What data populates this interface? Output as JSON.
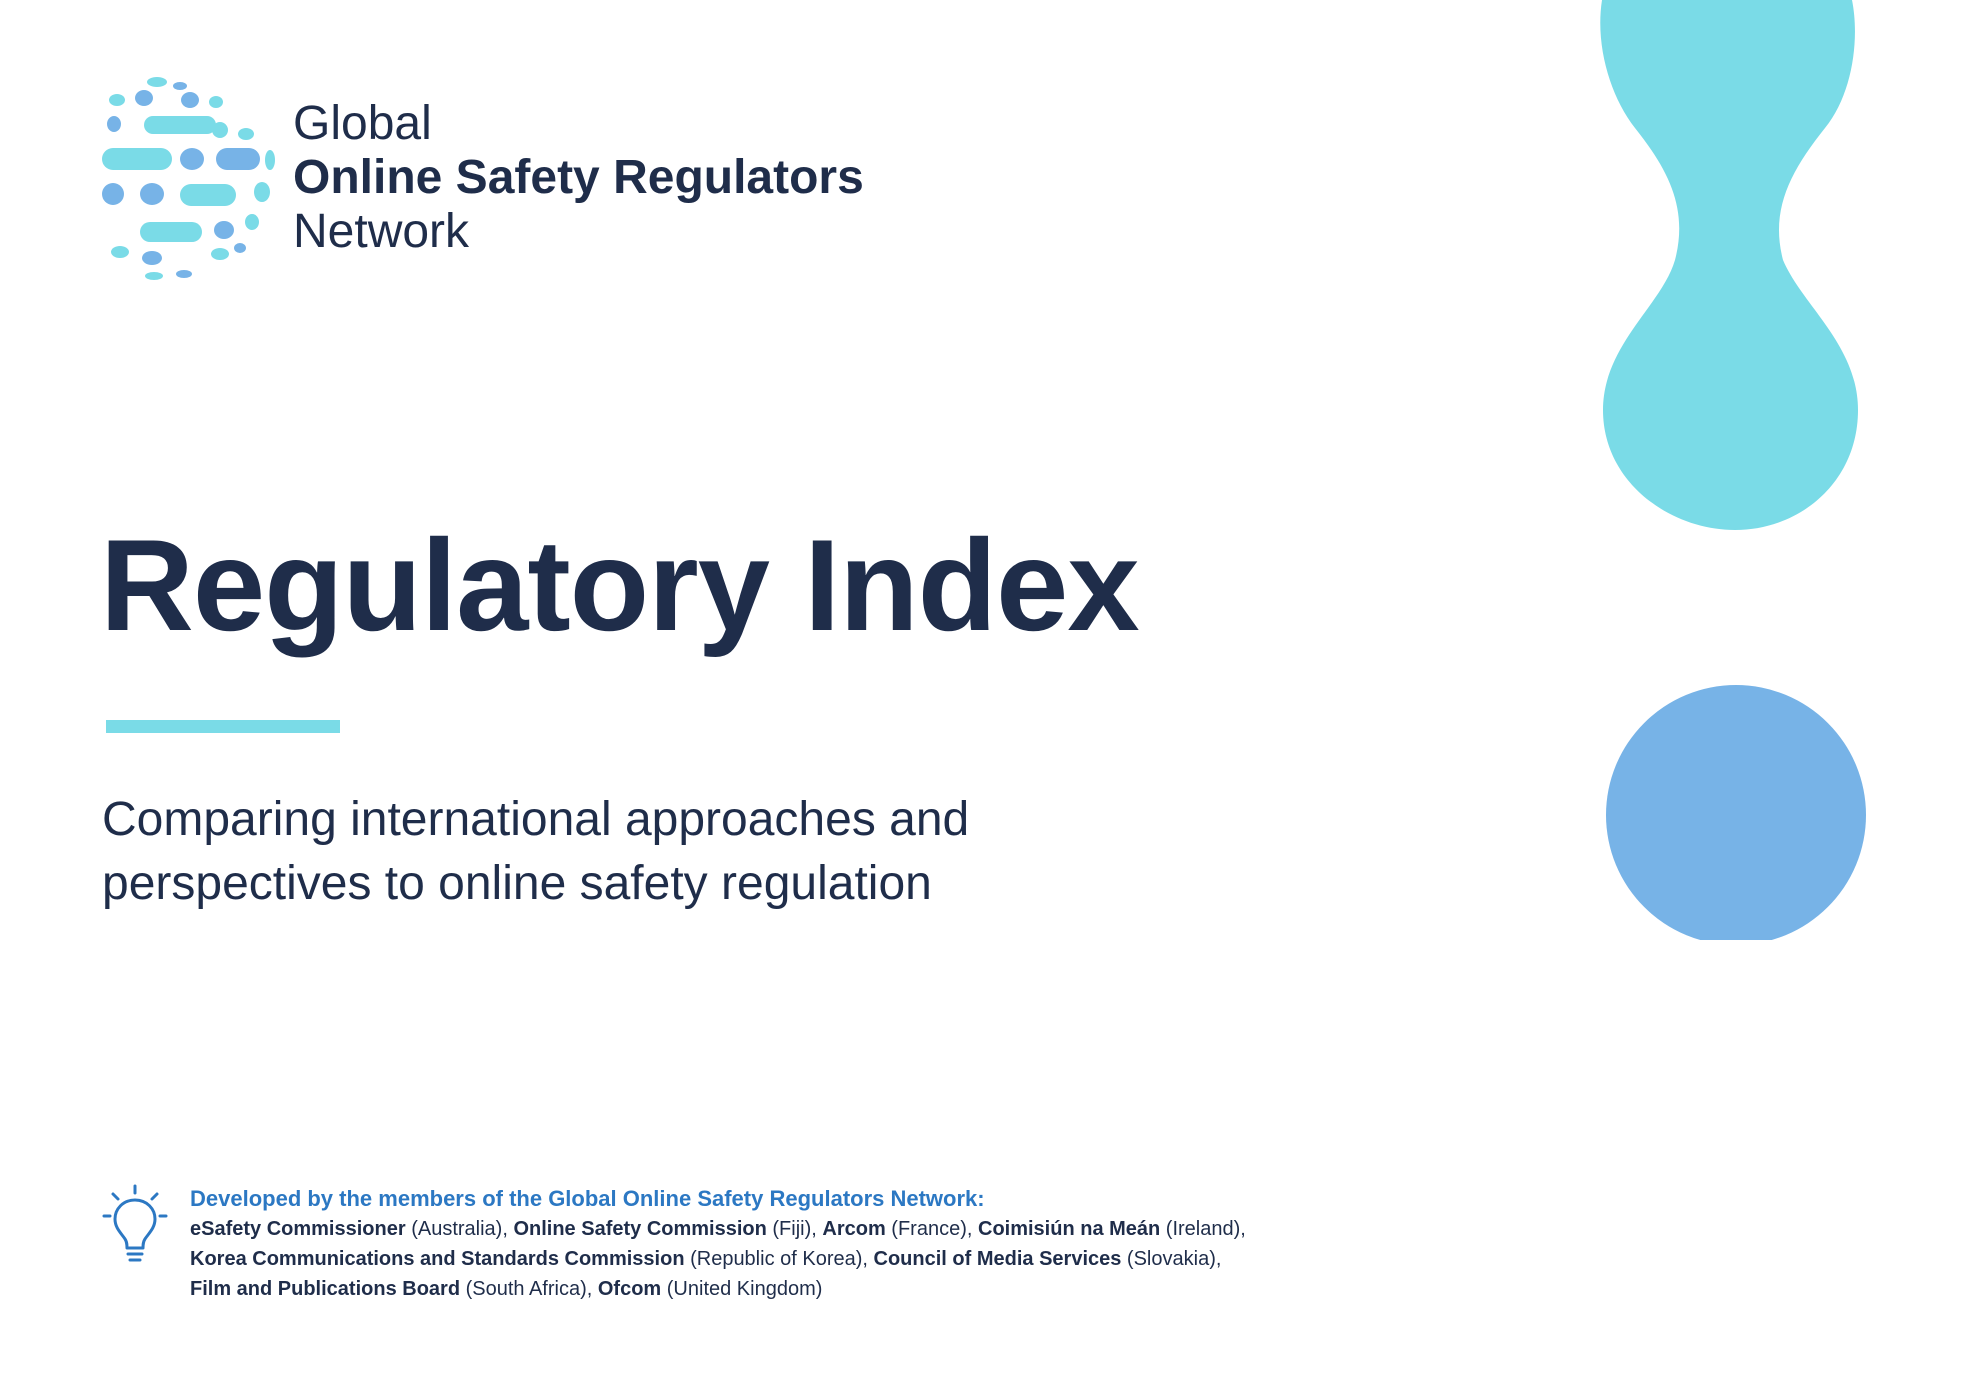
{
  "logo": {
    "line1": "Global",
    "line2": "Online Safety Regulators",
    "line3": "Network"
  },
  "title": "Regulatory Index",
  "subtitle": {
    "line1": "Comparing international approaches and",
    "line2": "perspectives to online safety regulation"
  },
  "credits": {
    "heading": "Developed by the members of the Global Online Safety Regulators Network:",
    "members": [
      {
        "name": "eSafety Commissioner",
        "country": " (Australia), "
      },
      {
        "name": "Online Safety Commission",
        "country": " (Fiji), "
      },
      {
        "name": "Arcom",
        "country": " (France), "
      },
      {
        "name": "Coimisiún na Meán",
        "country": " (Ireland),"
      },
      {
        "name": "Korea Communications and Standards Commission",
        "country": " (Republic of Korea), "
      },
      {
        "name": "Council of Media Services",
        "country": " (Slovakia),"
      },
      {
        "name": "Film and Publications Board",
        "country": " (South Africa), "
      },
      {
        "name": "Ofcom",
        "country": " (United Kingdom)"
      }
    ]
  },
  "colors": {
    "navy": "#1f2d4a",
    "cyan": "#7adbe7",
    "blue": "#77b3e7",
    "heading_blue": "#2c78c3"
  }
}
